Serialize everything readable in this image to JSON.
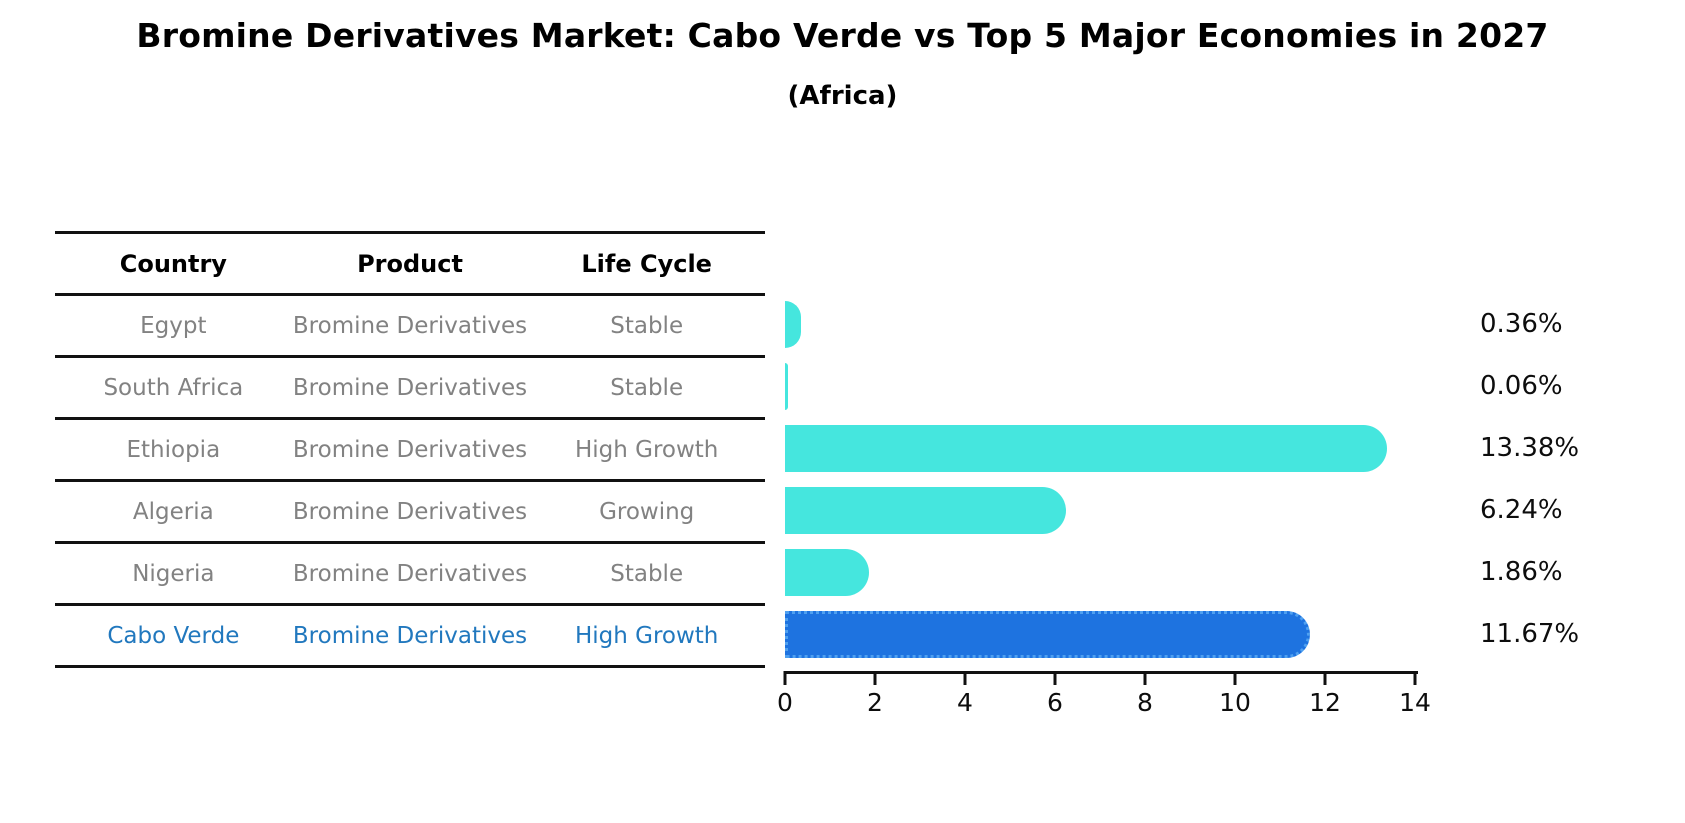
{
  "header": {
    "title": "Bromine Derivatives Market: Cabo Verde vs Top 5 Major Economies in 2027",
    "subtitle": "(Africa)"
  },
  "table": {
    "columns": [
      "Country",
      "Product",
      "Life Cycle"
    ],
    "rows": [
      {
        "country": "Egypt",
        "product": "Bromine Derivatives",
        "life_cycle": "Stable",
        "highlight": false
      },
      {
        "country": "South Africa",
        "product": "Bromine Derivatives",
        "life_cycle": "Stable",
        "highlight": false
      },
      {
        "country": "Ethiopia",
        "product": "Bromine Derivatives",
        "life_cycle": "High Growth",
        "highlight": false
      },
      {
        "country": "Algeria",
        "product": "Bromine Derivatives",
        "life_cycle": "Growing",
        "highlight": false
      },
      {
        "country": "Nigeria",
        "product": "Bromine Derivatives",
        "life_cycle": "Stable",
        "highlight": false
      },
      {
        "country": "Cabo Verde",
        "product": "Bromine Derivatives",
        "life_cycle": "High Growth",
        "highlight": true
      }
    ]
  },
  "chart_data": {
    "type": "bar",
    "orientation": "horizontal",
    "title": "Bromine Derivatives Market: Cabo Verde vs Top 5 Major Economies in 2027",
    "subtitle": "(Africa)",
    "categories": [
      "Egypt",
      "South Africa",
      "Ethiopia",
      "Algeria",
      "Nigeria",
      "Cabo Verde"
    ],
    "values": [
      0.36,
      0.06,
      13.38,
      6.24,
      1.86,
      11.67
    ],
    "value_labels": [
      "0.36%",
      "0.06%",
      "13.38%",
      "6.24%",
      "1.86%",
      "11.67%"
    ],
    "xlim": [
      0,
      14
    ],
    "xticks": [
      0,
      2,
      4,
      6,
      8,
      10,
      12,
      14
    ],
    "grid": false,
    "legend": false,
    "bar_color": "#45e6de",
    "highlight_index": 5,
    "highlight_bar_color": "#1e73e0",
    "highlight_border_color": "#4fa0f0",
    "highlight_text_color": "#2178be",
    "table_text_color": "#828282"
  }
}
